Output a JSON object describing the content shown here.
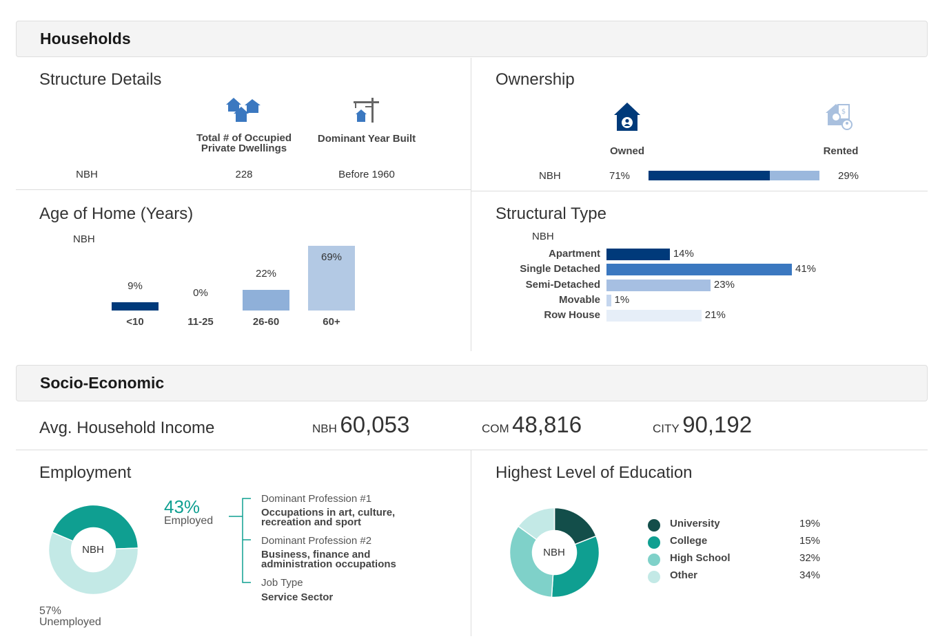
{
  "households": {
    "title": "Households",
    "structure": {
      "title": "Structure Details",
      "col1_label_line1": "Total # of Occupied",
      "col1_label_line2": "Private Dwellings",
      "col2_label": "Dominant Year Built",
      "row_label": "NBH",
      "dwellings": "228",
      "year_built": "Before 1960",
      "icons": [
        "houses-icon",
        "construction-crane-icon"
      ]
    },
    "ownership": {
      "title": "Ownership",
      "owned_label": "Owned",
      "rented_label": "Rented",
      "row_label": "NBH",
      "owned_pct": "71%",
      "rented_pct": "29%",
      "owned_value": 71,
      "rented_value": 29,
      "colors": {
        "owned": "#003a7a",
        "rented": "#9bb8dd"
      },
      "icons": [
        "owned-home-icon",
        "rented-home-icon"
      ]
    },
    "age_of_home": {
      "title": "Age of Home (Years)",
      "series_label": "NBH"
    },
    "structural_type": {
      "title": "Structural Type",
      "series_label": "NBH"
    }
  },
  "socio": {
    "title": "Socio-Economic",
    "income": {
      "label": "Avg. Household Income",
      "nbh_label": "NBH",
      "nbh_value": "60,053",
      "com_label": "COM",
      "com_value": "48,816",
      "city_label": "CITY",
      "city_value": "90,192"
    },
    "employment": {
      "title": "Employment",
      "center_label": "NBH",
      "employed_pct": "43%",
      "employed_label": "Employed",
      "unemployed_pct": "57%",
      "unemployed_label": "Unemployed",
      "prof1_label": "Dominant Profession #1",
      "prof1_value_line1": "Occupations in art, culture,",
      "prof1_value_line2": "recreation and sport",
      "prof2_label": "Dominant Profession #2",
      "prof2_value_line1": "Business, finance and",
      "prof2_value_line2": "administration occupations",
      "job_type_label": "Job Type",
      "job_type_value": "Service Sector"
    },
    "education": {
      "title": "Highest Level of Education",
      "center_label": "NBH",
      "legend": [
        {
          "label": "University",
          "pct": "19%",
          "color": "#134e4a"
        },
        {
          "label": "College",
          "pct": "15%",
          "color": "#0f9f91"
        },
        {
          "label": "High School",
          "pct": "32%",
          "color": "#7fd1c9"
        },
        {
          "label": "Other",
          "pct": "34%",
          "color": "#c3e9e6"
        }
      ]
    }
  },
  "chart_data": [
    {
      "type": "bar",
      "title": "Age of Home (Years)",
      "categories": [
        "<10",
        "11-25",
        "26-60",
        "60+"
      ],
      "series": [
        {
          "name": "NBH",
          "values": [
            9,
            0,
            22,
            69
          ]
        }
      ],
      "data_labels": [
        "9%",
        "0%",
        "22%",
        "69%"
      ],
      "colors": [
        "#003a7a",
        "#2f6db5",
        "#8fb0d9",
        "#b3c9e4"
      ]
    },
    {
      "type": "bar",
      "orientation": "horizontal",
      "title": "Structural Type",
      "categories": [
        "Apartment",
        "Single Detached",
        "Semi-Detached",
        "Movable",
        "Row House"
      ],
      "series": [
        {
          "name": "NBH",
          "values": [
            14,
            41,
            23,
            1,
            21
          ]
        }
      ],
      "data_labels": [
        "14%",
        "41%",
        "23%",
        "1%",
        "21%"
      ],
      "colors": [
        "#003a7a",
        "#3b78c0",
        "#a6bfe2",
        "#c5d6ee",
        "#e6eef8"
      ]
    },
    {
      "type": "pie",
      "title": "Employment",
      "categories": [
        "Employed",
        "Unemployed"
      ],
      "values": [
        43,
        57
      ],
      "colors": [
        "#0f9f91",
        "#c3e9e6"
      ]
    },
    {
      "type": "pie",
      "title": "Highest Level of Education",
      "categories": [
        "University",
        "College",
        "High School",
        "Other"
      ],
      "values": [
        19,
        15,
        32,
        34
      ],
      "colors": [
        "#134e4a",
        "#0f9f91",
        "#7fd1c9",
        "#c3e9e6"
      ]
    }
  ]
}
